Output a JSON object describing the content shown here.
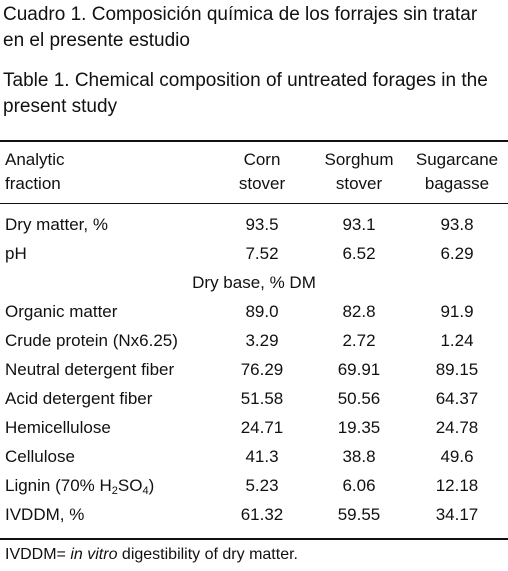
{
  "caption_es": "Cuadro 1. Composición química de los forrajes sin tratar en el presente estudio",
  "caption_en": "Table 1. Chemical composition of untreated forages in the present study",
  "columns": {
    "fraction": [
      "Analytic",
      "fraction"
    ],
    "corn": [
      "Corn",
      "stover"
    ],
    "sorghum": [
      "Sorghum",
      "stover"
    ],
    "sugarcane": [
      "Sugarcane",
      "bagasse"
    ]
  },
  "rows": [
    {
      "label": "Dry matter, %",
      "corn": "93.5",
      "sorghum": "93.1",
      "sugarcane": "93.8"
    },
    {
      "label": "pH",
      "corn": "7.52",
      "sorghum": "6.52",
      "sugarcane": "6.29"
    }
  ],
  "section_label": "Dry base, % DM",
  "dry_rows": [
    {
      "label": "Organic matter",
      "corn": "89.0",
      "sorghum": "82.8",
      "sugarcane": "91.9"
    },
    {
      "label": "Crude protein (Nx6.25)",
      "corn": "3.29",
      "sorghum": "2.72",
      "sugarcane": "1.24"
    },
    {
      "label": "Neutral detergent fiber",
      "corn": "76.29",
      "sorghum": "69.91",
      "sugarcane": "89.15"
    },
    {
      "label": "Acid detergent fiber",
      "corn": "51.58",
      "sorghum": "50.56",
      "sugarcane": "64.37"
    },
    {
      "label": "Hemicellulose",
      "corn": "24.71",
      "sorghum": "19.35",
      "sugarcane": "24.78"
    },
    {
      "label": "Cellulose",
      "corn": "41.3",
      "sorghum": "38.8",
      "sugarcane": "49.6"
    },
    {
      "label_prefix": "Lignin (70% H",
      "sub1": "2",
      "label_mid": "SO",
      "sub2": "4",
      "label_suffix": ")",
      "corn": "5.23",
      "sorghum": "6.06",
      "sugarcane": "12.18"
    },
    {
      "label": "IVDDM, %",
      "corn": "61.32",
      "sorghum": "59.55",
      "sugarcane": "34.17"
    }
  ],
  "footnote": {
    "prefix": "IVDDM= ",
    "italic": "in vitro",
    "suffix": " digestibility of dry matter."
  }
}
